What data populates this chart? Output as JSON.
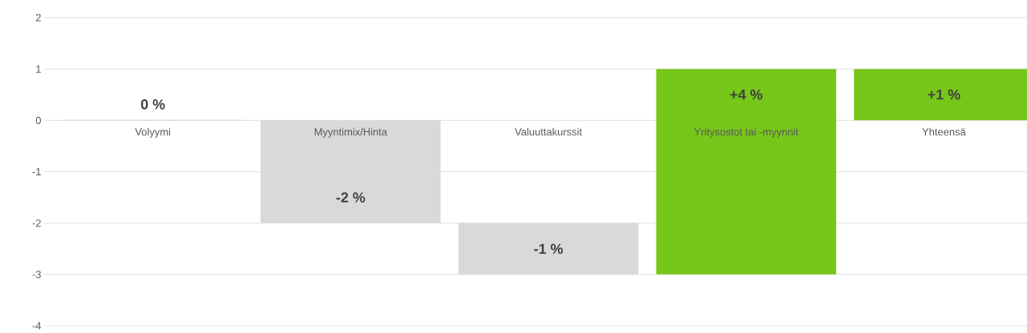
{
  "chart_data": {
    "type": "bar",
    "categories": [
      "Volyymi",
      "Myyntimix/Hinta",
      "Valuuttakurssit",
      "Yritysostot tai -myynnit",
      "Yhteensä"
    ],
    "values": [
      0,
      -2,
      -1,
      4,
      1
    ],
    "base": [
      null,
      0,
      -2,
      -3,
      0
    ],
    "colors": [
      "#d9d9d9",
      "#d9d9d9",
      "#d9d9d9",
      "#77c61a",
      "#77c61a"
    ],
    "value_labels": [
      "0 %",
      "-2 %",
      "-1 %",
      "+4 %",
      "+1 %"
    ],
    "ylim": [
      -4,
      2
    ],
    "yticks": [
      -4,
      -3,
      -2,
      -1,
      0,
      1,
      2
    ],
    "grid": "y"
  }
}
